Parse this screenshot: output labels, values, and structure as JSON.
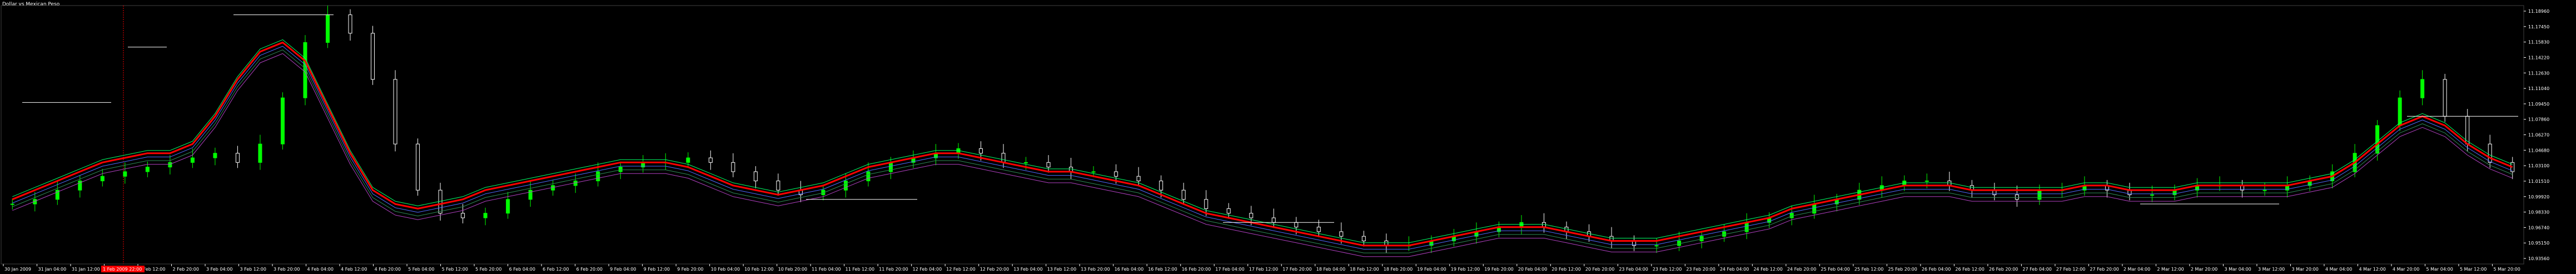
{
  "window": {
    "title": "Dollar vs Mexican Peso"
  },
  "colors": {
    "background": "#000000",
    "candle_up": "#00ff00",
    "candle_down": "#ffffff",
    "ma_fast": "#ff0000",
    "ma_2": "#00ff66",
    "ma_3": "#4f6bff",
    "ma_4": "#2e8b57",
    "ma_5": "#b040c0",
    "levels": "#ffffff",
    "vertical_marker": "#ff0000"
  },
  "price_axis": {
    "labels": [
      "11.18960",
      "11.17450",
      "11.15830",
      "11.14220",
      "11.12630",
      "11.11040",
      "11.09450",
      "11.07860",
      "11.06270",
      "11.04680",
      "11.03100",
      "11.01510",
      "10.99920",
      "10.98330",
      "10.96740",
      "10.95150",
      "10.93560"
    ]
  },
  "time_axis": {
    "labels": [
      "30 Jan 2009",
      "31 Jan 04:00",
      "31 Jan 12:00",
      "2 Feb 04:00",
      "2 Feb 12:00",
      "2 Feb 20:00",
      "3 Feb 04:00",
      "3 Feb 12:00",
      "3 Feb 20:00",
      "4 Feb 04:00",
      "4 Feb 12:00",
      "4 Feb 20:00",
      "5 Feb 04:00",
      "5 Feb 12:00",
      "5 Feb 20:00",
      "6 Feb 04:00",
      "6 Feb 12:00",
      "6 Feb 20:00",
      "9 Feb 04:00",
      "9 Feb 12:00",
      "9 Feb 20:00",
      "10 Feb 04:00",
      "10 Feb 12:00",
      "10 Feb 20:00",
      "11 Feb 04:00",
      "11 Feb 12:00",
      "11 Feb 20:00",
      "12 Feb 04:00",
      "12 Feb 12:00",
      "12 Feb 20:00",
      "13 Feb 04:00",
      "13 Feb 12:00",
      "13 Feb 20:00",
      "16 Feb 04:00",
      "16 Feb 12:00",
      "16 Feb 20:00",
      "17 Feb 04:00",
      "17 Feb 12:00",
      "17 Feb 20:00",
      "18 Feb 04:00",
      "18 Feb 12:00",
      "18 Feb 20:00",
      "19 Feb 04:00",
      "19 Feb 12:00",
      "19 Feb 20:00",
      "20 Feb 04:00",
      "20 Feb 12:00",
      "20 Feb 20:00",
      "23 Feb 04:00",
      "23 Feb 12:00",
      "23 Feb 20:00",
      "24 Feb 04:00",
      "24 Feb 12:00",
      "24 Feb 20:00",
      "25 Feb 04:00",
      "25 Feb 12:00",
      "25 Feb 20:00",
      "26 Feb 04:00",
      "26 Feb 12:00",
      "26 Feb 20:00",
      "27 Feb 04:00",
      "27 Feb 12:00",
      "27 Feb 20:00",
      "2 Mar 04:00",
      "2 Mar 12:00",
      "2 Mar 20:00",
      "3 Mar 04:00",
      "3 Mar 12:00",
      "3 Mar 20:00",
      "4 Mar 04:00",
      "4 Mar 12:00",
      "4 Mar 20:00",
      "5 Mar 04:00",
      "5 Mar 12:00",
      "5 Mar 20:00"
    ],
    "highlighted_label": "1 Feb 2009 22:00"
  },
  "chart_data": {
    "type": "candlestick",
    "symbol_title": "Dollar vs Mexican Peso",
    "ylim": [
      10.92,
      11.2
    ],
    "series": [
      {
        "name": "",
        "kind": "close",
        "values": [
          10.985,
          10.99,
          11.0,
          11.01,
          11.015,
          11.02,
          11.025,
          11.03,
          11.035,
          11.04,
          11.03,
          11.05,
          11.1,
          11.16,
          11.19,
          11.17,
          11.12,
          11.05,
          11.0,
          10.975,
          10.97,
          10.975,
          10.99,
          11.0,
          11.005,
          11.01,
          11.02,
          11.025,
          11.03,
          11.03,
          11.035,
          11.03,
          11.02,
          11.01,
          11.0,
          10.995,
          11.0,
          11.01,
          11.02,
          11.03,
          11.035,
          11.04,
          11.045,
          11.04,
          11.03,
          11.03,
          11.025,
          11.02,
          11.02,
          11.015,
          11.01,
          11.0,
          10.99,
          10.98,
          10.975,
          10.97,
          10.965,
          10.96,
          10.955,
          10.95,
          10.945,
          10.94,
          10.94,
          10.945,
          10.95,
          10.955,
          10.96,
          10.965,
          10.96,
          10.955,
          10.95,
          10.945,
          10.94,
          10.94,
          10.945,
          10.95,
          10.955,
          10.965,
          10.97,
          10.975,
          10.985,
          10.99,
          11.0,
          11.005,
          11.01,
          11.01,
          11.005,
          11.0,
          10.995,
          10.99,
          11.0,
          11.0,
          11.005,
          11.0,
          10.995,
          10.995,
          11.0,
          11.005,
          11.005,
          11.0,
          11.0,
          11.005,
          11.01,
          11.02,
          11.04,
          11.07,
          11.1,
          11.12,
          11.08,
          11.05,
          11.03,
          11.02
        ]
      },
      {
        "name": "",
        "kind": "ma",
        "values": [
          10.99,
          11.0,
          11.01,
          11.02,
          11.03,
          11.035,
          11.04,
          11.04,
          11.05,
          11.08,
          11.12,
          11.15,
          11.16,
          11.14,
          11.09,
          11.04,
          11.0,
          10.985,
          10.98,
          10.985,
          10.99,
          11.0,
          11.005,
          11.01,
          11.015,
          11.02,
          11.025,
          11.03,
          11.03,
          11.03,
          11.025,
          11.015,
          11.005,
          11.0,
          10.995,
          11.0,
          11.005,
          11.015,
          11.025,
          11.03,
          11.035,
          11.04,
          11.04,
          11.035,
          11.03,
          11.025,
          11.02,
          11.02,
          11.015,
          11.01,
          11.005,
          10.995,
          10.985,
          10.975,
          10.97,
          10.965,
          10.96,
          10.955,
          10.95,
          10.945,
          10.94,
          10.94,
          10.94,
          10.945,
          10.95,
          10.955,
          10.96,
          10.96,
          10.96,
          10.955,
          10.95,
          10.945,
          10.945,
          10.945,
          10.95,
          10.955,
          10.96,
          10.965,
          10.97,
          10.98,
          10.985,
          10.99,
          10.995,
          11.0,
          11.005,
          11.005,
          11.005,
          11.0,
          11.0,
          11.0,
          11.0,
          11.0,
          11.005,
          11.005,
          11.0,
          11.0,
          11.0,
          11.005,
          11.005,
          11.005,
          11.005,
          11.005,
          11.01,
          11.015,
          11.03,
          11.05,
          11.07,
          11.08,
          11.07,
          11.05,
          11.035,
          11.025
        ]
      }
    ]
  }
}
